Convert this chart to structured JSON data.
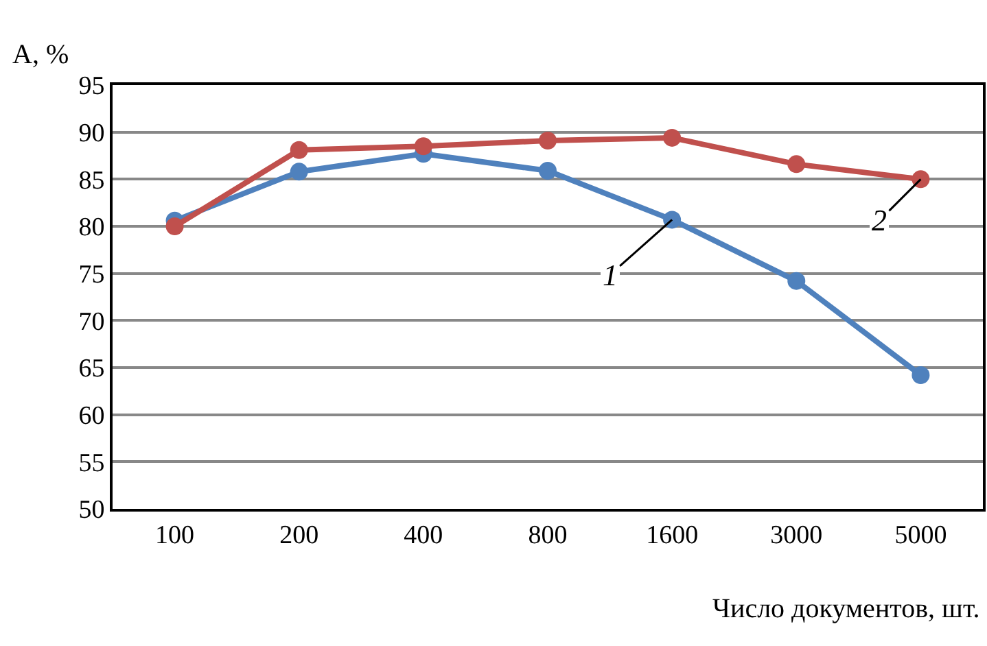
{
  "chart_data": {
    "type": "line",
    "xlabel": "Число документов, шт.",
    "ylabel": "А, %",
    "categories": [
      "100",
      "200",
      "400",
      "800",
      "1600",
      "3000",
      "5000"
    ],
    "series": [
      {
        "color": "#4f81bd",
        "values": [
          80.6,
          85.8,
          87.7,
          85.9,
          80.7,
          74.2,
          64.2
        ]
      },
      {
        "color": "#c0504d",
        "values": [
          80,
          88.1,
          88.5,
          89.1,
          89.4,
          86.6,
          85
        ]
      }
    ],
    "ylim": [
      50,
      95
    ],
    "yticks": [
      50,
      55,
      60,
      65,
      70,
      75,
      80,
      85,
      90,
      95
    ],
    "grid": "y",
    "marker": "circle",
    "line_style": "solid",
    "annotations": [
      {
        "text": "1",
        "x": "1600",
        "y": 80.7
      },
      {
        "text": "2",
        "x": "5000",
        "y": 85
      }
    ]
  }
}
